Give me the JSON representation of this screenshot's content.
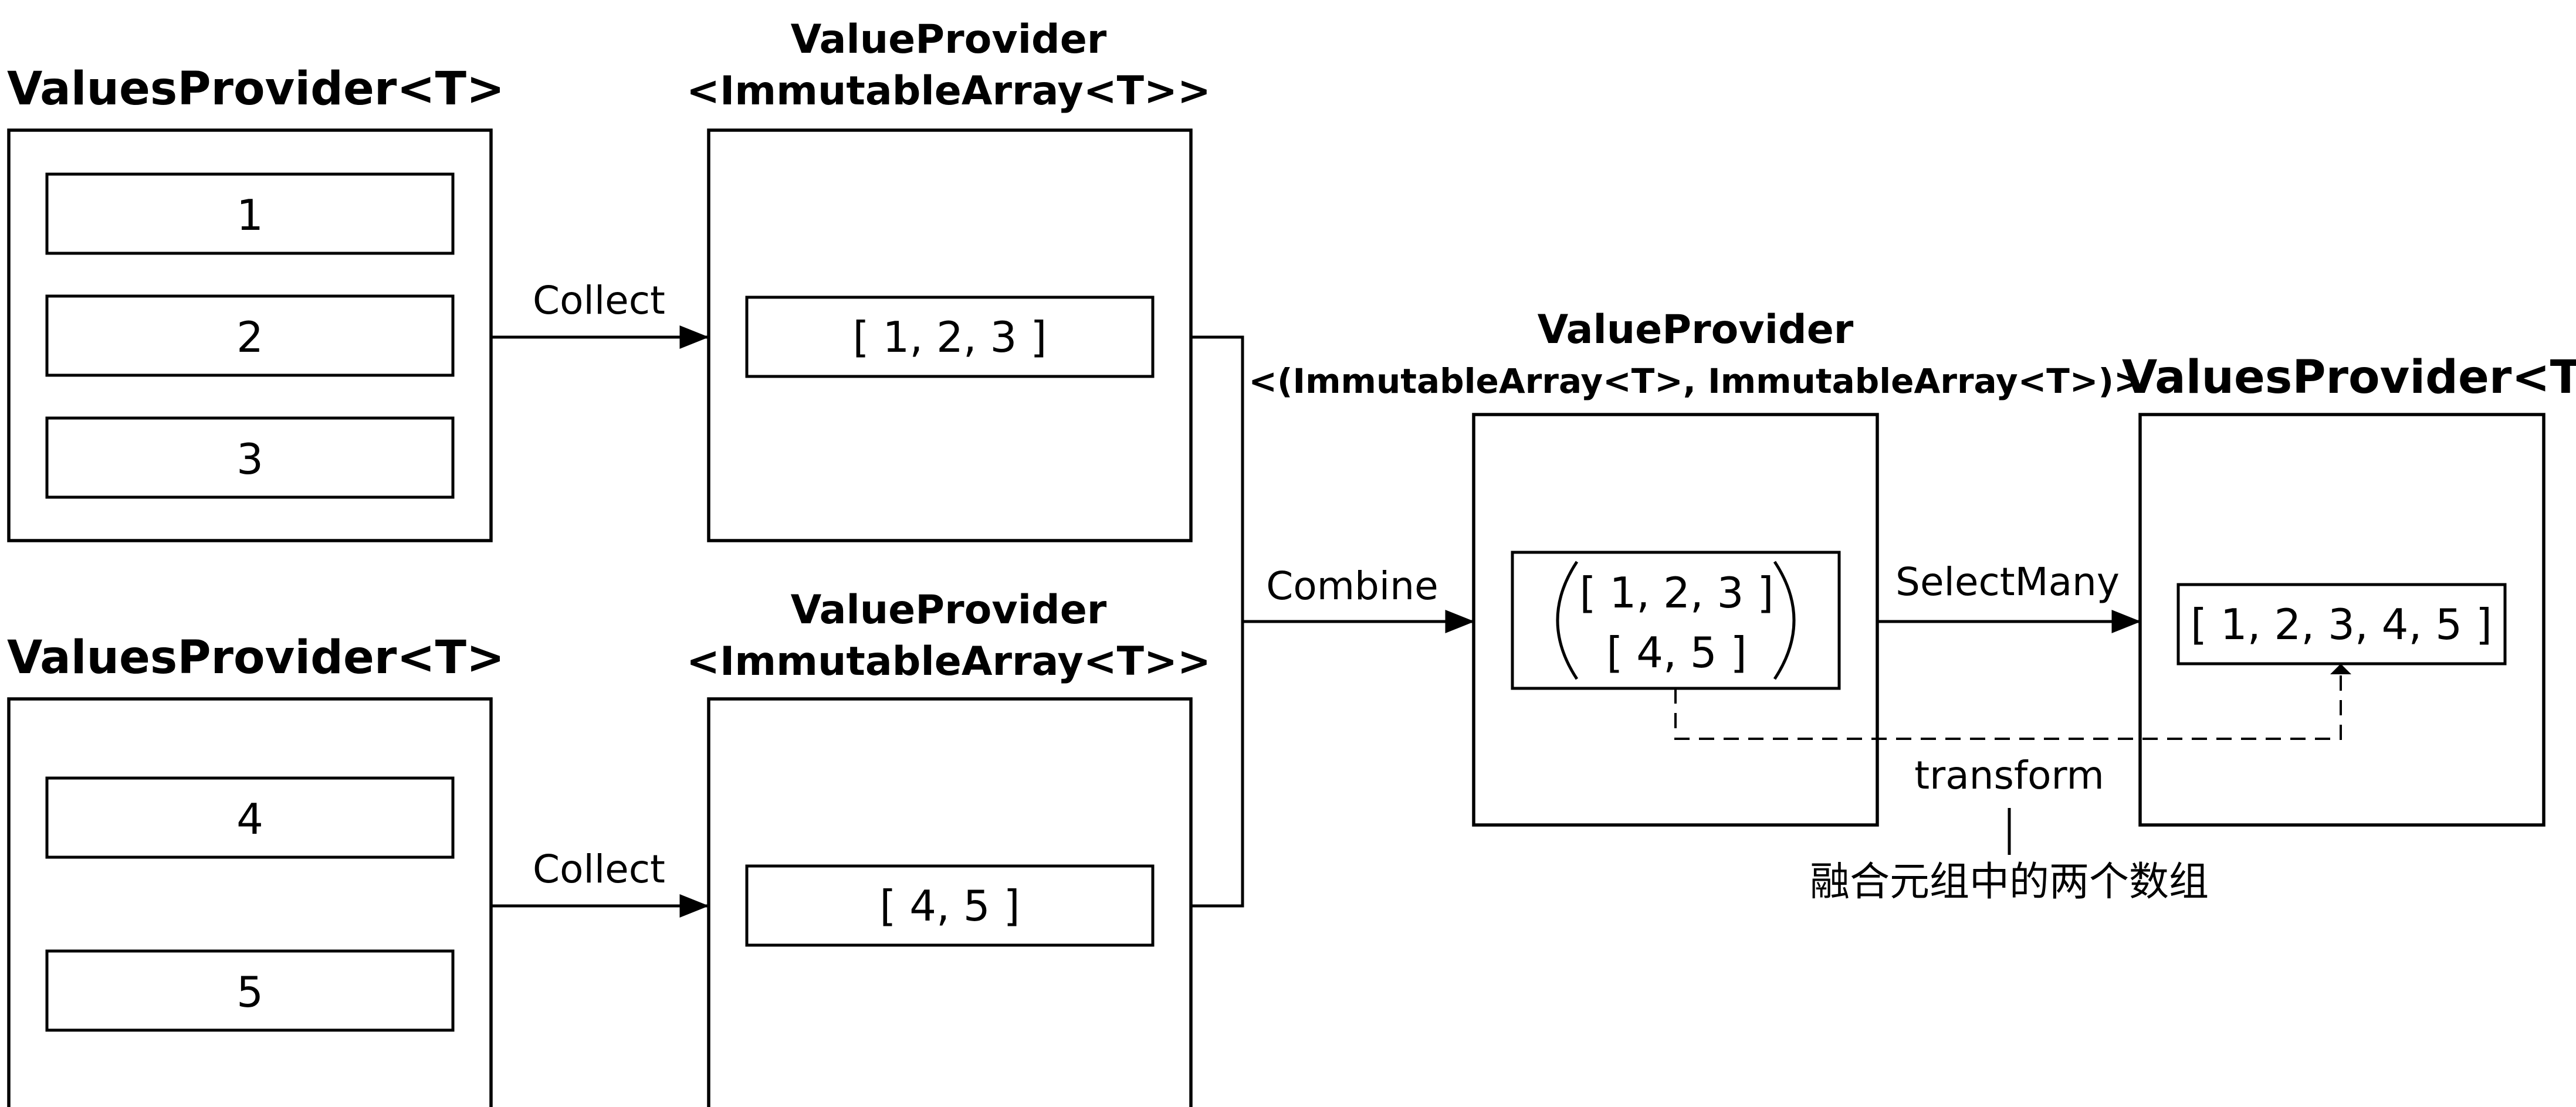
{
  "left_top": {
    "title": "ValuesProvider<T>",
    "items": [
      "1",
      "2",
      "3"
    ]
  },
  "left_bottom": {
    "title": "ValuesProvider<T>",
    "items": [
      "4",
      "5"
    ]
  },
  "collect_top": {
    "title_line1": "ValueProvider",
    "title_line2": "<ImmutableArray<T>>",
    "value": "[ 1, 2, 3 ]"
  },
  "collect_bottom": {
    "title_line1": "ValueProvider",
    "title_line2": "<ImmutableArray<T>>",
    "value": "[ 4, 5 ]"
  },
  "combined": {
    "title_line1": "ValueProvider",
    "title_line2": "<(ImmutableArray<T>, ImmutableArray<T>)>",
    "line1": "[ 1, 2, 3 ]",
    "line2": "[ 4, 5 ]"
  },
  "result": {
    "title": "ValuesProvider<T>",
    "value": "[ 1, 2, 3, 4, 5 ]"
  },
  "edges": {
    "collect_top": "Collect",
    "collect_bottom": "Collect",
    "combine": "Combine",
    "select_many": "SelectMany",
    "transform": "transform"
  },
  "annotation": "融合元组中的两个数组"
}
